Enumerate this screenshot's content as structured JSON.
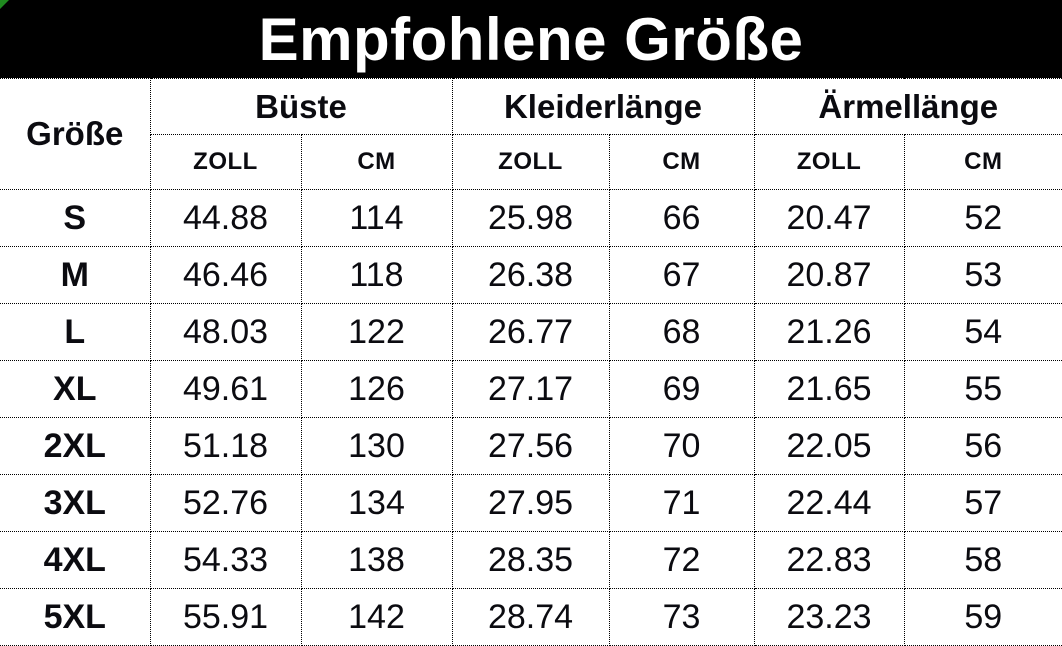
{
  "title": "Empfohlene Größe",
  "colors": {
    "title_bg": "#000000",
    "title_fg": "#ffffff",
    "border": "#000000",
    "text": "#0b0b10",
    "background": "#ffffff",
    "corner_accent": "#1f8a1f"
  },
  "chart_data": {
    "type": "table",
    "title": "Empfohlene Größe",
    "corner_header": "Größe",
    "column_groups": [
      {
        "label": "Büste",
        "columns": [
          "ZOLL",
          "CM"
        ]
      },
      {
        "label": "Kleiderlänge",
        "columns": [
          "ZOLL",
          "CM"
        ]
      },
      {
        "label": "Ärmellänge",
        "columns": [
          "ZOLL",
          "CM"
        ]
      }
    ],
    "rows": [
      {
        "size": "S",
        "values": [
          "44.88",
          "114",
          "25.98",
          "66",
          "20.47",
          "52"
        ]
      },
      {
        "size": "M",
        "values": [
          "46.46",
          "118",
          "26.38",
          "67",
          "20.87",
          "53"
        ]
      },
      {
        "size": "L",
        "values": [
          "48.03",
          "122",
          "26.77",
          "68",
          "21.26",
          "54"
        ]
      },
      {
        "size": "XL",
        "values": [
          "49.61",
          "126",
          "27.17",
          "69",
          "21.65",
          "55"
        ]
      },
      {
        "size": "2XL",
        "values": [
          "51.18",
          "130",
          "27.56",
          "70",
          "22.05",
          "56"
        ]
      },
      {
        "size": "3XL",
        "values": [
          "52.76",
          "134",
          "27.95",
          "71",
          "22.44",
          "57"
        ]
      },
      {
        "size": "4XL",
        "values": [
          "54.33",
          "138",
          "28.35",
          "72",
          "22.83",
          "58"
        ]
      },
      {
        "size": "5XL",
        "values": [
          "55.91",
          "142",
          "28.74",
          "73",
          "23.23",
          "59"
        ]
      }
    ]
  }
}
